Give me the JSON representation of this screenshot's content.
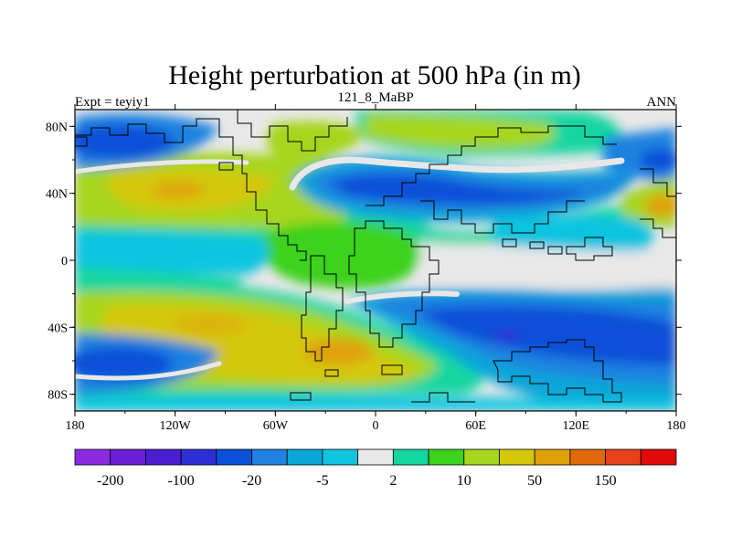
{
  "chart_data": {
    "type": "heatmap",
    "title": "Height perturbation at 500 hPa (in m)",
    "left_label": "Expt = teyiy1",
    "center_label": "121_8_MaBP",
    "right_label": "ANN",
    "x_ticks": [
      "180",
      "120W",
      "60W",
      "0",
      "60E",
      "120E",
      "180"
    ],
    "y_ticks": [
      "80N",
      "40N",
      "0",
      "40S",
      "80S"
    ],
    "xlim": [
      -180,
      180
    ],
    "ylim": [
      -90,
      90
    ],
    "colorbar": {
      "colors": [
        "#8a2be2",
        "#6a1fd6",
        "#4b1fcf",
        "#2d2fd6",
        "#0a50d8",
        "#1f82e0",
        "#0aa6d8",
        "#10c4e0",
        "#e8e8e8",
        "#14d6a0",
        "#3cd21e",
        "#a6d61e",
        "#d4c80a",
        "#e0a00a",
        "#e06a0a",
        "#e8401a",
        "#e00a0a"
      ],
      "labels": [
        {
          "boundary": 1,
          "text": "-200"
        },
        {
          "boundary": 3,
          "text": "-100"
        },
        {
          "boundary": 5,
          "text": "-20"
        },
        {
          "boundary": 7,
          "text": "-5"
        },
        {
          "boundary": 9,
          "text": "2"
        },
        {
          "boundary": 11,
          "text": "10"
        },
        {
          "boundary": 13,
          "text": "50"
        },
        {
          "boundary": 15,
          "text": "150"
        }
      ]
    }
  }
}
